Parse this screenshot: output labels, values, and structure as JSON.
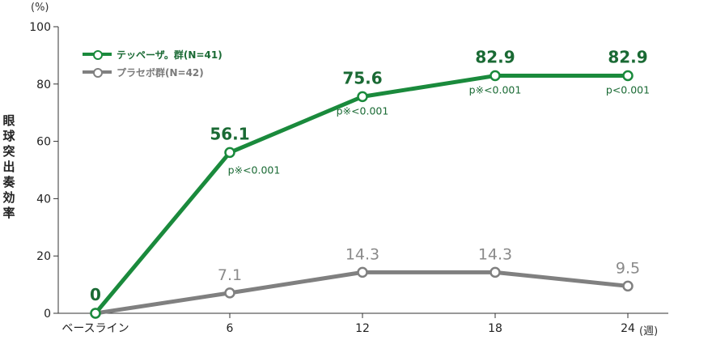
{
  "chart_data": {
    "type": "line",
    "x_categories": [
      "ベースライン",
      "6",
      "12",
      "18",
      "24"
    ],
    "x_unit": "(週)",
    "y_unit": "(%)",
    "ylabel": "眼球突出奏効率",
    "ylim": [
      0,
      100
    ],
    "yticks": [
      0,
      20,
      40,
      60,
      80,
      100
    ],
    "legend_position": "top-left",
    "series": [
      {
        "name": "テッペーザ。群(N=41)",
        "color": "#1a8a3c",
        "label_color": "#1a6a34",
        "values": [
          0,
          56.1,
          75.6,
          82.9,
          82.9
        ],
        "value_labels": [
          "0",
          "56.1",
          "75.6",
          "82.9",
          "82.9"
        ],
        "p_values": [
          "",
          "p※<0.001",
          "p※<0.001",
          "p※<0.001",
          "p<0.001"
        ]
      },
      {
        "name": "プラセボ群(N=42)",
        "color": "#808080",
        "label_color": "#8a8a8a",
        "values": [
          0,
          7.1,
          14.3,
          14.3,
          9.5
        ],
        "value_labels": [
          "",
          "7.1",
          "14.3",
          "14.3",
          "9.5"
        ]
      }
    ]
  }
}
